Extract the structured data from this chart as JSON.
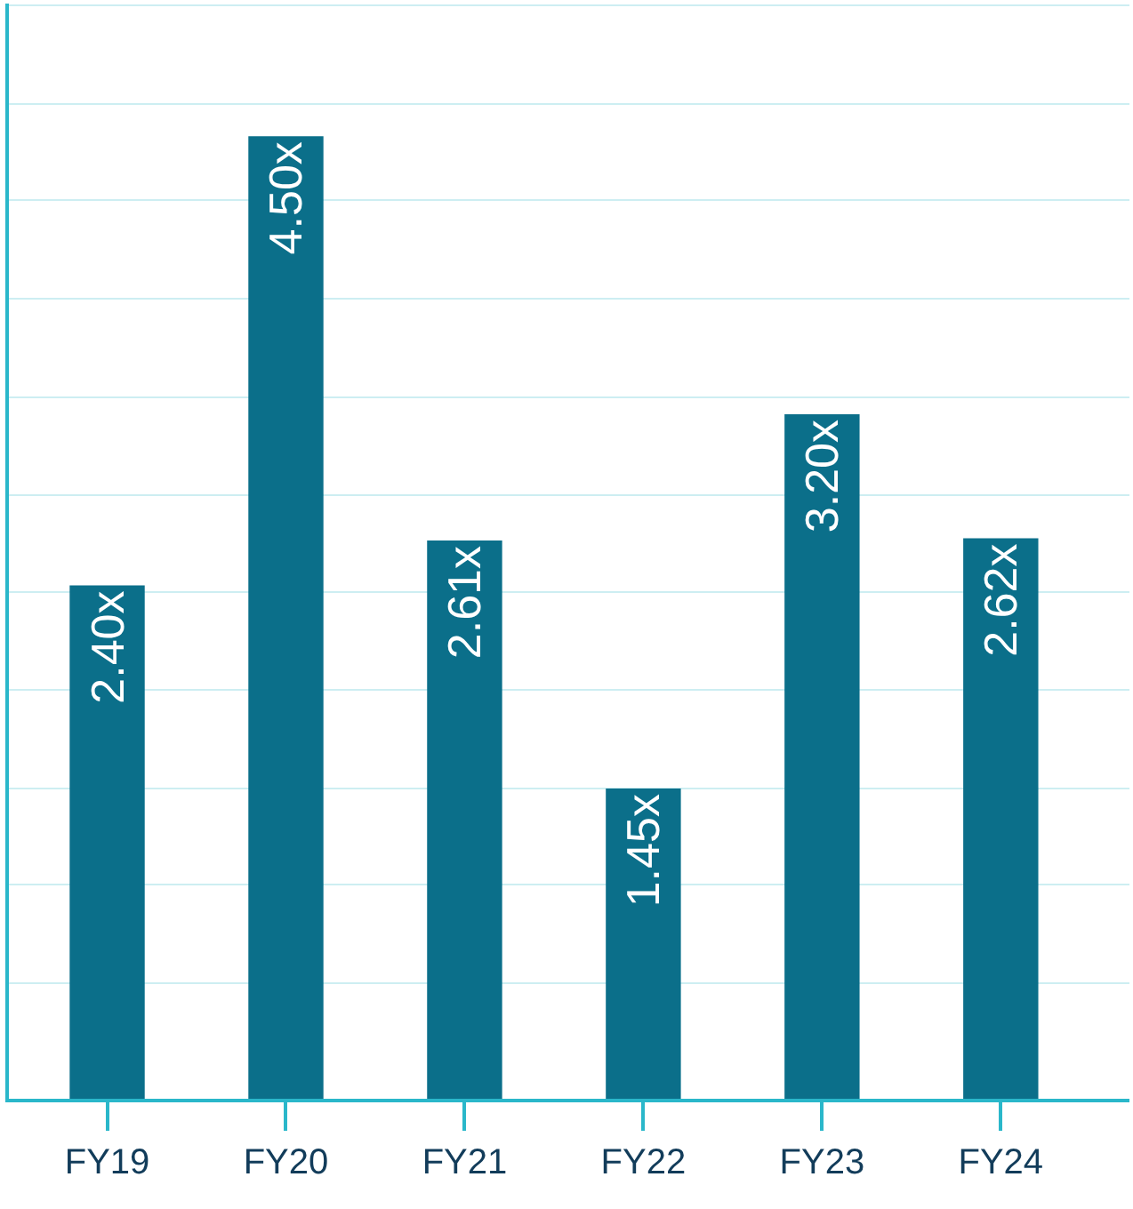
{
  "chart_data": {
    "type": "bar",
    "categories": [
      "FY19",
      "FY20",
      "FY21",
      "FY22",
      "FY23",
      "FY24"
    ],
    "values": [
      2.4,
      4.5,
      2.61,
      1.45,
      3.2,
      2.62
    ],
    "value_labels": [
      "2.40x",
      "4.50x",
      "2.61x",
      "1.45x",
      "3.20x",
      "2.62x"
    ],
    "color": "#0b6f8a",
    "ylim": [
      0,
      5.12
    ],
    "yticks": [
      {
        "value": 0.54,
        "label": null
      },
      {
        "value": 1.0,
        "label": null
      },
      {
        "value": 1.45,
        "label": null
      },
      {
        "value": 1.91,
        "label": null
      },
      {
        "value": 2.37,
        "label": null
      },
      {
        "value": 2.82,
        "label": null
      },
      {
        "value": 3.28,
        "label": null
      },
      {
        "value": 3.74,
        "label": null
      },
      {
        "value": 4.2,
        "label": null
      },
      {
        "value": 4.65,
        "label": null
      },
      {
        "value": 5.11,
        "label": null
      }
    ],
    "grid": "y",
    "tick_labels": "x"
  }
}
